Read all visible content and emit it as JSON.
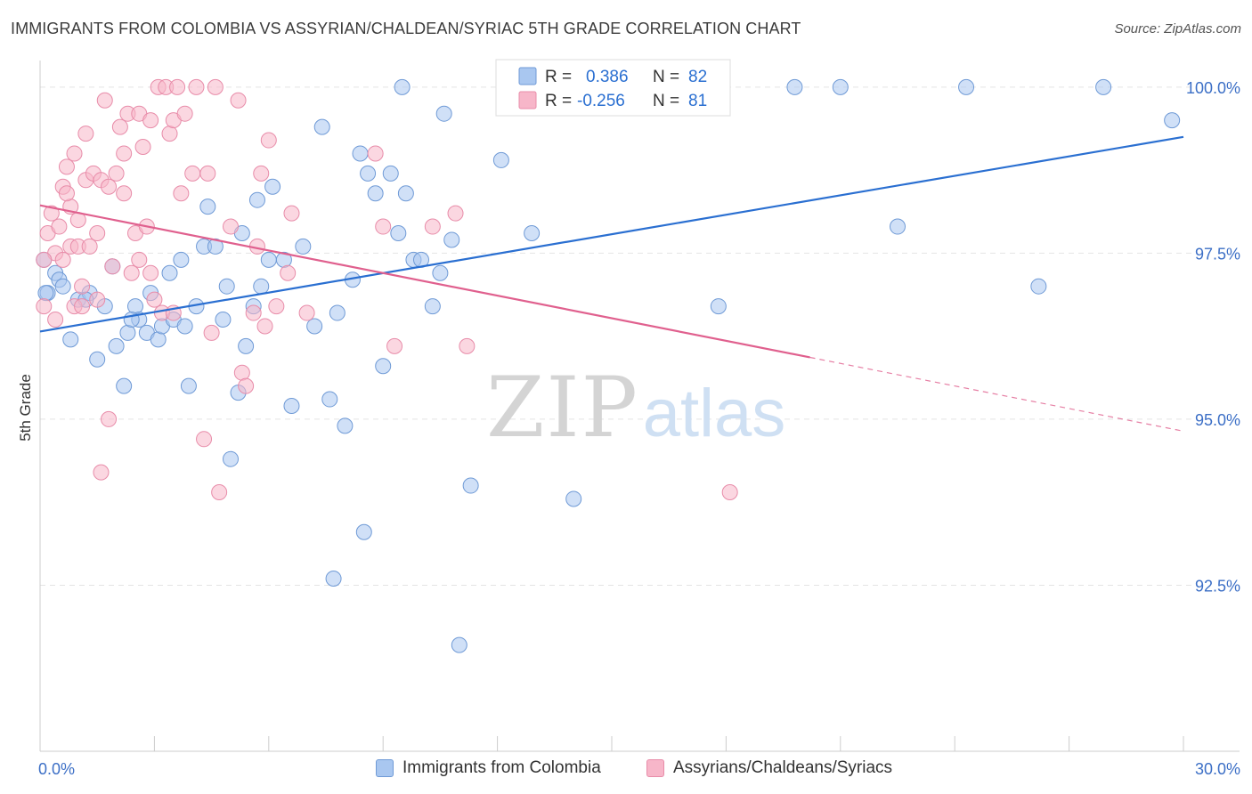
{
  "title": "IMMIGRANTS FROM COLOMBIA VS ASSYRIAN/CHALDEAN/SYRIAC 5TH GRADE CORRELATION CHART",
  "source": "Source: ZipAtlas.com",
  "watermark": {
    "zip": "ZIP",
    "atlas": "atlas"
  },
  "colors": {
    "blue_fill": "#a9c7f0",
    "blue_stroke": "#6f9ad6",
    "blue_line": "#2a6fd1",
    "pink_fill": "#f7b6c9",
    "pink_stroke": "#e88ca9",
    "pink_line": "#e0608e",
    "tick_label": "#3c6fc6",
    "grid": "#e4e4e4"
  },
  "legend_box": {
    "rows": [
      {
        "r_label": "R =",
        "r_value": "0.386",
        "n_label": "N =",
        "n_value": "82",
        "series": "blue"
      },
      {
        "r_label": "R =",
        "r_value": "-0.256",
        "n_label": "N =",
        "n_value": "81",
        "series": "pink"
      }
    ]
  },
  "chart_data": {
    "type": "scatter",
    "ylabel": "5th Grade",
    "xlabel": "",
    "xlim": [
      0,
      30
    ],
    "ylim": [
      90.0,
      100.4
    ],
    "x_tick_labels": [
      {
        "value": 0,
        "label": "0.0%"
      },
      {
        "value": 30,
        "label": "30.0%"
      }
    ],
    "y_tick_labels": [
      {
        "value": 100.0,
        "label": "100.0%"
      },
      {
        "value": 97.5,
        "label": "97.5%"
      },
      {
        "value": 95.0,
        "label": "95.0%"
      },
      {
        "value": 92.5,
        "label": "92.5%"
      }
    ],
    "grid": true,
    "legend_position": "bottom",
    "series": [
      {
        "name": "Immigrants from Colombia",
        "color": "blue",
        "trend": {
          "x": [
            0,
            30
          ],
          "y": [
            96.32,
            99.25
          ],
          "solid_until": 30
        },
        "points": [
          [
            0.1,
            97.4
          ],
          [
            0.2,
            96.9
          ],
          [
            0.4,
            97.2
          ],
          [
            0.5,
            97.1
          ],
          [
            0.6,
            97.0
          ],
          [
            0.8,
            96.2
          ],
          [
            1.0,
            96.8
          ],
          [
            1.3,
            96.9
          ],
          [
            1.5,
            95.9
          ],
          [
            1.7,
            96.7
          ],
          [
            1.9,
            97.3
          ],
          [
            2.0,
            96.1
          ],
          [
            2.2,
            95.5
          ],
          [
            2.3,
            96.3
          ],
          [
            2.5,
            96.7
          ],
          [
            2.6,
            96.5
          ],
          [
            2.8,
            96.3
          ],
          [
            2.9,
            96.9
          ],
          [
            3.1,
            96.2
          ],
          [
            3.2,
            96.4
          ],
          [
            3.4,
            97.2
          ],
          [
            3.5,
            96.5
          ],
          [
            3.7,
            97.4
          ],
          [
            3.8,
            96.4
          ],
          [
            3.9,
            95.5
          ],
          [
            4.1,
            96.7
          ],
          [
            4.3,
            97.6
          ],
          [
            4.4,
            98.2
          ],
          [
            4.6,
            97.6
          ],
          [
            4.8,
            96.5
          ],
          [
            4.9,
            97.0
          ],
          [
            5.0,
            94.4
          ],
          [
            5.2,
            95.4
          ],
          [
            5.3,
            97.8
          ],
          [
            5.4,
            96.1
          ],
          [
            5.6,
            96.7
          ],
          [
            5.7,
            98.3
          ],
          [
            5.8,
            97.0
          ],
          [
            6.0,
            97.4
          ],
          [
            6.1,
            98.5
          ],
          [
            6.4,
            97.4
          ],
          [
            6.6,
            95.2
          ],
          [
            6.9,
            97.6
          ],
          [
            7.2,
            96.4
          ],
          [
            7.4,
            99.4
          ],
          [
            7.6,
            95.3
          ],
          [
            7.8,
            96.6
          ],
          [
            8.0,
            94.9
          ],
          [
            8.2,
            97.1
          ],
          [
            8.4,
            99.0
          ],
          [
            8.5,
            93.3
          ],
          [
            8.6,
            98.7
          ],
          [
            8.8,
            98.4
          ],
          [
            9.0,
            95.8
          ],
          [
            9.2,
            98.7
          ],
          [
            9.4,
            97.8
          ],
          [
            9.6,
            98.4
          ],
          [
            9.8,
            97.4
          ],
          [
            10.0,
            97.4
          ],
          [
            10.3,
            96.7
          ],
          [
            10.5,
            97.2
          ],
          [
            10.6,
            99.6
          ],
          [
            10.8,
            97.7
          ],
          [
            11.0,
            91.6
          ],
          [
            11.3,
            94.0
          ],
          [
            12.1,
            98.9
          ],
          [
            12.9,
            97.8
          ],
          [
            14.0,
            93.8
          ],
          [
            15.0,
            100.0
          ],
          [
            17.8,
            96.7
          ],
          [
            19.8,
            100.0
          ],
          [
            21.0,
            100.0
          ],
          [
            22.5,
            97.9
          ],
          [
            24.3,
            100.0
          ],
          [
            26.2,
            97.0
          ],
          [
            27.9,
            100.0
          ],
          [
            29.7,
            99.5
          ],
          [
            0.15,
            96.9
          ],
          [
            7.7,
            92.6
          ],
          [
            1.2,
            96.8
          ],
          [
            2.4,
            96.5
          ],
          [
            9.5,
            100.0
          ]
        ]
      },
      {
        "name": "Assyrians/Chaldeans/Syriacs",
        "color": "pink",
        "trend": {
          "x": [
            0,
            30
          ],
          "y": [
            98.22,
            94.82
          ],
          "solid_until": 20.2
        },
        "points": [
          [
            0.1,
            96.7
          ],
          [
            0.2,
            97.8
          ],
          [
            0.3,
            98.1
          ],
          [
            0.4,
            97.5
          ],
          [
            0.4,
            96.5
          ],
          [
            0.5,
            97.9
          ],
          [
            0.6,
            98.5
          ],
          [
            0.6,
            97.4
          ],
          [
            0.7,
            98.8
          ],
          [
            0.8,
            98.2
          ],
          [
            0.8,
            97.6
          ],
          [
            0.9,
            99.0
          ],
          [
            0.9,
            96.7
          ],
          [
            1.0,
            98.0
          ],
          [
            1.0,
            97.6
          ],
          [
            1.1,
            97.0
          ],
          [
            1.2,
            98.6
          ],
          [
            1.2,
            99.3
          ],
          [
            1.3,
            97.6
          ],
          [
            1.4,
            98.7
          ],
          [
            1.5,
            97.8
          ],
          [
            1.6,
            94.2
          ],
          [
            1.6,
            98.6
          ],
          [
            1.7,
            99.8
          ],
          [
            1.8,
            98.5
          ],
          [
            1.8,
            95.0
          ],
          [
            1.9,
            97.3
          ],
          [
            2.0,
            98.7
          ],
          [
            2.1,
            99.4
          ],
          [
            2.2,
            98.4
          ],
          [
            2.2,
            99.0
          ],
          [
            2.3,
            99.6
          ],
          [
            2.4,
            97.2
          ],
          [
            2.5,
            97.8
          ],
          [
            2.6,
            99.6
          ],
          [
            2.6,
            97.4
          ],
          [
            2.7,
            99.1
          ],
          [
            2.8,
            97.9
          ],
          [
            2.9,
            99.5
          ],
          [
            3.0,
            96.8
          ],
          [
            3.1,
            100.0
          ],
          [
            3.2,
            96.6
          ],
          [
            3.3,
            100.0
          ],
          [
            3.4,
            99.3
          ],
          [
            3.5,
            99.5
          ],
          [
            3.6,
            100.0
          ],
          [
            3.7,
            98.4
          ],
          [
            3.8,
            99.6
          ],
          [
            4.0,
            98.7
          ],
          [
            4.1,
            100.0
          ],
          [
            4.3,
            94.7
          ],
          [
            4.4,
            98.7
          ],
          [
            4.5,
            96.3
          ],
          [
            4.6,
            100.0
          ],
          [
            4.7,
            93.9
          ],
          [
            5.0,
            97.9
          ],
          [
            5.3,
            95.7
          ],
          [
            5.4,
            95.5
          ],
          [
            5.6,
            96.6
          ],
          [
            5.7,
            97.6
          ],
          [
            5.8,
            98.7
          ],
          [
            5.9,
            96.4
          ],
          [
            6.0,
            99.2
          ],
          [
            6.2,
            96.7
          ],
          [
            6.5,
            97.2
          ],
          [
            6.6,
            98.1
          ],
          [
            7.0,
            96.6
          ],
          [
            8.8,
            99.0
          ],
          [
            9.0,
            97.9
          ],
          [
            9.3,
            96.1
          ],
          [
            10.3,
            97.9
          ],
          [
            10.9,
            98.1
          ],
          [
            11.2,
            96.1
          ],
          [
            18.1,
            93.9
          ],
          [
            0.1,
            97.4
          ],
          [
            1.1,
            96.7
          ],
          [
            3.5,
            96.6
          ],
          [
            5.2,
            99.8
          ],
          [
            0.7,
            98.4
          ],
          [
            2.9,
            97.2
          ],
          [
            1.5,
            96.8
          ]
        ]
      }
    ]
  },
  "bottom_legend": [
    {
      "label": "Immigrants from Colombia",
      "series": "blue"
    },
    {
      "label": "Assyrians/Chaldeans/Syriacs",
      "series": "pink"
    }
  ]
}
